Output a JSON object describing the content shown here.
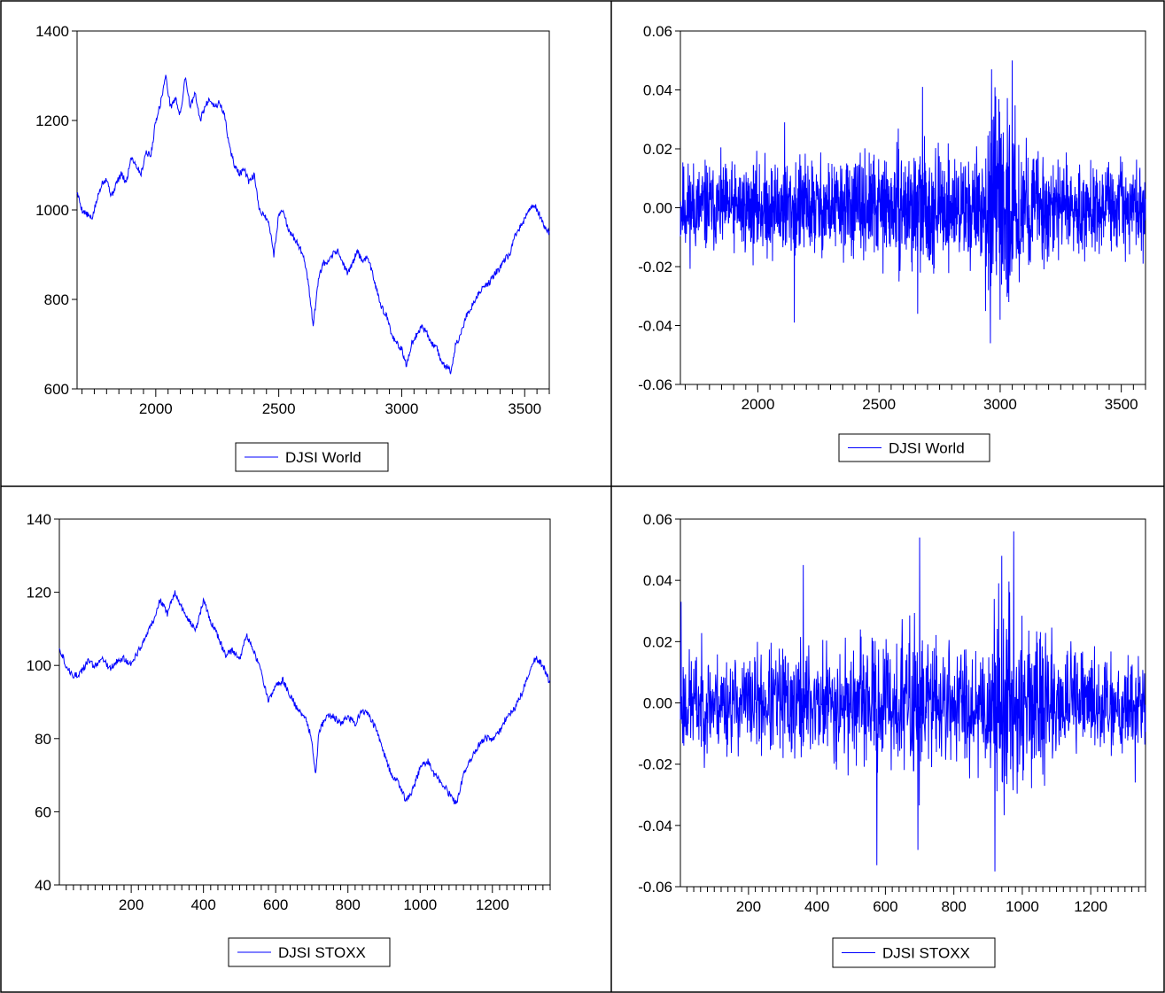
{
  "colors": {
    "series": "#0000ff",
    "frame": "#000000",
    "background": "#ffffff"
  },
  "chart_data": [
    {
      "type": "line",
      "legend": "DJSI World",
      "legend_placement": "bottom-center",
      "grid": false,
      "xlim": [
        1680,
        3600
      ],
      "ylim": [
        600,
        1400
      ],
      "x_ticks": [
        2000,
        2500,
        3000,
        3500
      ],
      "y_ticks": [
        600,
        800,
        1000,
        1200,
        1400
      ],
      "y_tick_labels": [
        "600",
        "800",
        "1000",
        "1200",
        "1400"
      ],
      "series": [
        {
          "name": "DJSI World",
          "x": [
            1680,
            1700,
            1720,
            1740,
            1760,
            1780,
            1800,
            1820,
            1840,
            1860,
            1880,
            1900,
            1920,
            1940,
            1960,
            1980,
            2000,
            2020,
            2040,
            2060,
            2080,
            2100,
            2120,
            2140,
            2160,
            2180,
            2200,
            2220,
            2240,
            2260,
            2280,
            2300,
            2320,
            2340,
            2360,
            2380,
            2400,
            2420,
            2440,
            2460,
            2480,
            2500,
            2520,
            2540,
            2560,
            2580,
            2600,
            2620,
            2640,
            2660,
            2680,
            2700,
            2720,
            2740,
            2760,
            2780,
            2800,
            2820,
            2840,
            2860,
            2880,
            2900,
            2920,
            2940,
            2960,
            2980,
            3000,
            3020,
            3040,
            3060,
            3080,
            3100,
            3120,
            3140,
            3160,
            3180,
            3200,
            3220,
            3240,
            3260,
            3280,
            3300,
            3320,
            3340,
            3360,
            3380,
            3400,
            3420,
            3440,
            3460,
            3480,
            3500,
            3520,
            3540,
            3560,
            3580,
            3600
          ],
          "values": [
            1040,
            1000,
            990,
            980,
            1020,
            1060,
            1070,
            1030,
            1060,
            1080,
            1060,
            1120,
            1100,
            1080,
            1130,
            1120,
            1200,
            1240,
            1300,
            1230,
            1250,
            1210,
            1300,
            1230,
            1260,
            1200,
            1230,
            1250,
            1230,
            1240,
            1210,
            1140,
            1100,
            1080,
            1090,
            1060,
            1080,
            1000,
            990,
            970,
            900,
            990,
            1000,
            950,
            940,
            920,
            900,
            840,
            740,
            840,
            880,
            880,
            900,
            910,
            880,
            860,
            880,
            910,
            880,
            900,
            860,
            820,
            780,
            760,
            720,
            700,
            690,
            650,
            700,
            720,
            740,
            730,
            700,
            700,
            660,
            650,
            640,
            700,
            720,
            760,
            780,
            800,
            820,
            830,
            840,
            860,
            870,
            890,
            900,
            940,
            960,
            980,
            1000,
            1010,
            990,
            960,
            950
          ]
        }
      ]
    },
    {
      "type": "line",
      "legend": "DJSI World",
      "legend_placement": "bottom-center",
      "grid": false,
      "xlim": [
        1680,
        3600
      ],
      "ylim": [
        -0.06,
        0.06
      ],
      "x_ticks": [
        2000,
        2500,
        3000,
        3500
      ],
      "y_ticks": [
        -0.06,
        -0.04,
        -0.02,
        0.0,
        0.02,
        0.04,
        0.06
      ],
      "y_tick_labels": [
        "-0.06",
        "-0.04",
        "-0.02",
        "0.00",
        "0.02",
        "0.04",
        "0.06"
      ],
      "volatility_profile": {
        "x": [
          1680,
          1900,
          2100,
          2400,
          2650,
          2800,
          2900,
          2950,
          3000,
          3050,
          3100,
          3300,
          3600
        ],
        "amplitude": [
          0.011,
          0.01,
          0.012,
          0.011,
          0.014,
          0.012,
          0.013,
          0.02,
          0.024,
          0.02,
          0.015,
          0.01,
          0.01
        ]
      },
      "extremes": [
        {
          "x": 2150,
          "value": -0.039
        },
        {
          "x": 2110,
          "value": 0.029
        },
        {
          "x": 2660,
          "value": -0.036
        },
        {
          "x": 2680,
          "value": 0.041
        },
        {
          "x": 2960,
          "value": -0.046
        },
        {
          "x": 2965,
          "value": 0.047
        },
        {
          "x": 3050,
          "value": 0.05
        },
        {
          "x": 3000,
          "value": -0.038
        },
        {
          "x": 3590,
          "value": -0.019
        }
      ],
      "series": [
        {
          "name": "DJSI World",
          "n_points": 1920,
          "seed": 11
        }
      ]
    },
    {
      "type": "line",
      "legend": "DJSI STOXX",
      "legend_placement": "bottom-center",
      "grid": false,
      "xlim": [
        1,
        1360
      ],
      "ylim": [
        40,
        140
      ],
      "x_ticks": [
        200,
        400,
        600,
        800,
        1000,
        1200
      ],
      "y_ticks": [
        40,
        60,
        80,
        100,
        120,
        140
      ],
      "y_tick_labels": [
        "40",
        "60",
        "80",
        "100",
        "120",
        "140"
      ],
      "series": [
        {
          "name": "DJSI STOXX",
          "x": [
            1,
            20,
            40,
            60,
            80,
            100,
            120,
            140,
            160,
            180,
            200,
            220,
            240,
            260,
            280,
            300,
            320,
            340,
            360,
            380,
            400,
            420,
            440,
            460,
            480,
            500,
            520,
            540,
            560,
            580,
            600,
            620,
            640,
            660,
            680,
            700,
            710,
            720,
            740,
            760,
            780,
            800,
            820,
            840,
            860,
            880,
            900,
            920,
            940,
            960,
            980,
            1000,
            1020,
            1040,
            1060,
            1080,
            1100,
            1120,
            1140,
            1160,
            1180,
            1200,
            1220,
            1240,
            1260,
            1280,
            1300,
            1320,
            1340,
            1360
          ],
          "values": [
            105,
            100,
            97,
            98,
            101,
            100,
            102,
            99,
            101,
            102,
            100,
            104,
            108,
            112,
            118,
            114,
            120,
            116,
            112,
            110,
            118,
            112,
            108,
            103,
            104,
            102,
            108,
            104,
            98,
            90,
            94,
            96,
            92,
            88,
            86,
            80,
            70,
            82,
            86,
            86,
            84,
            86,
            84,
            88,
            86,
            82,
            76,
            70,
            68,
            63,
            66,
            72,
            74,
            70,
            68,
            65,
            62,
            70,
            74,
            78,
            80,
            80,
            82,
            86,
            88,
            92,
            98,
            102,
            100,
            95
          ]
        }
      ]
    },
    {
      "type": "line",
      "legend": "DJSI STOXX",
      "legend_placement": "bottom-center",
      "grid": false,
      "xlim": [
        1,
        1360
      ],
      "ylim": [
        -0.06,
        0.06
      ],
      "x_ticks": [
        200,
        400,
        600,
        800,
        1000,
        1200
      ],
      "y_ticks": [
        -0.06,
        -0.04,
        -0.02,
        0.0,
        0.02,
        0.04,
        0.06
      ],
      "y_tick_labels": [
        "-0.06",
        "-0.04",
        "-0.02",
        "0.00",
        "0.02",
        "0.04",
        "0.06"
      ],
      "volatility_profile": {
        "x": [
          1,
          200,
          350,
          550,
          690,
          720,
          760,
          880,
          920,
          960,
          1000,
          1100,
          1360
        ],
        "amplitude": [
          0.012,
          0.011,
          0.014,
          0.013,
          0.019,
          0.016,
          0.013,
          0.015,
          0.024,
          0.022,
          0.018,
          0.013,
          0.011
        ]
      },
      "extremes": [
        {
          "x": 3,
          "value": 0.033
        },
        {
          "x": 360,
          "value": 0.045
        },
        {
          "x": 575,
          "value": -0.053
        },
        {
          "x": 700,
          "value": 0.054
        },
        {
          "x": 695,
          "value": -0.048
        },
        {
          "x": 920,
          "value": -0.055
        },
        {
          "x": 975,
          "value": 0.056
        },
        {
          "x": 940,
          "value": 0.048
        },
        {
          "x": 1330,
          "value": -0.026
        }
      ],
      "series": [
        {
          "name": "DJSI STOXX",
          "n_points": 1360,
          "seed": 23
        }
      ]
    }
  ]
}
